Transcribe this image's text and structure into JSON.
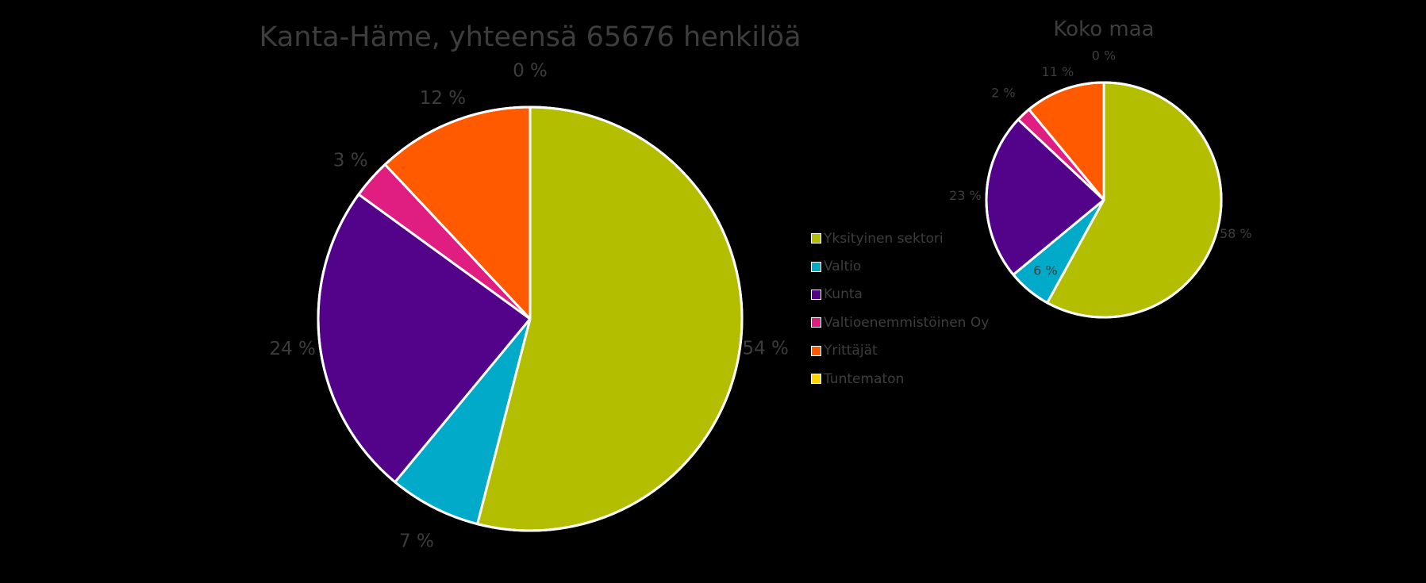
{
  "chart_data": [
    {
      "type": "pie",
      "title": "Kanta-Häme, yhteensä 65676 henkilöä",
      "categories": [
        "Yksityinen sektori",
        "Valtio",
        "Kunta",
        "Valtioenemmistöinen Oy",
        "Yrittäjät",
        "Tuntematon"
      ],
      "values": [
        54,
        7,
        24,
        3,
        12,
        0
      ],
      "labels": [
        "54 %",
        "7 %",
        "24 %",
        "3 %",
        "12 %",
        "0 %"
      ]
    },
    {
      "type": "pie",
      "title": "Koko maa",
      "categories": [
        "Yksityinen sektori",
        "Valtio",
        "Kunta",
        "Valtioenemmistöinen Oy",
        "Yrittäjät",
        "Tuntematon"
      ],
      "values": [
        58,
        6,
        23,
        2,
        11,
        0
      ],
      "labels": [
        "58 %",
        "6 %",
        "23 %",
        "2 %",
        "11 %",
        "0 %"
      ]
    }
  ],
  "legend": {
    "placement": "right",
    "items": [
      "Yksityinen sektori",
      "Valtio",
      "Kunta",
      "Valtioenemmistöinen Oy",
      "Yrittäjät",
      "Tuntematon"
    ]
  },
  "colors": {
    "Yksityinen sektori": "#b3be00",
    "Valtio": "#00aac8",
    "Kunta": "#530389",
    "Valtioenemmistöinen Oy": "#e01e82",
    "Yrittäjät": "#ff5a00",
    "Tuntematon": "#ffd400"
  },
  "text_color": "#3d3d3d",
  "background": "#000000"
}
